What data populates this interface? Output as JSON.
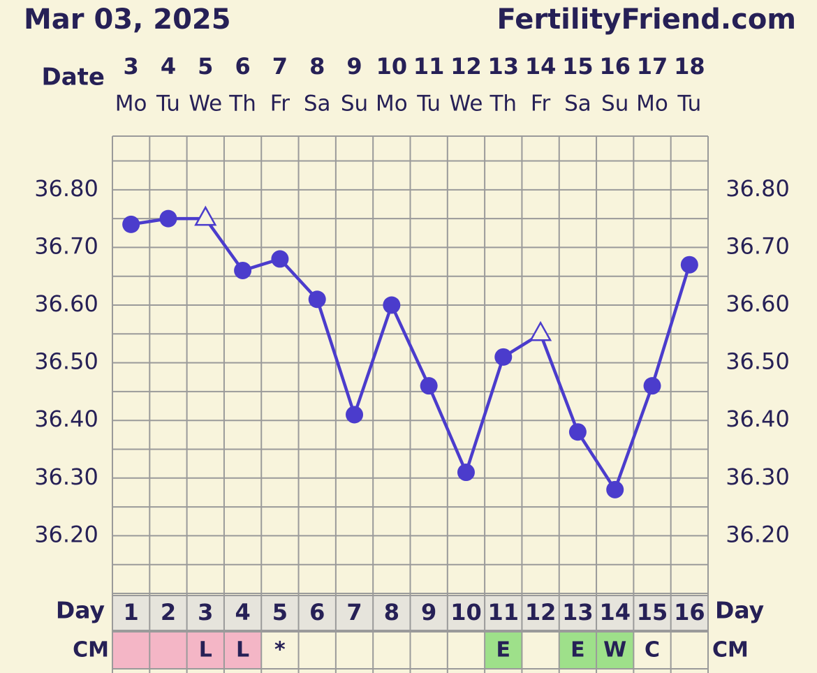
{
  "chart_data": {
    "type": "line",
    "title": "Mar 03, 2025",
    "site": "FertilityFriend.com",
    "date_label": "Date",
    "dates": [
      3,
      4,
      5,
      6,
      7,
      8,
      9,
      10,
      11,
      12,
      13,
      14,
      15,
      16,
      17,
      18
    ],
    "weekdays": [
      "Mo",
      "Tu",
      "We",
      "Th",
      "Fr",
      "Sa",
      "Su",
      "Mo",
      "Tu",
      "We",
      "Th",
      "Fr",
      "Sa",
      "Su",
      "Mo",
      "Tu"
    ],
    "day_label": "Day",
    "cycle_days": [
      1,
      2,
      3,
      4,
      5,
      6,
      7,
      8,
      9,
      10,
      11,
      12,
      13,
      14,
      15,
      16
    ],
    "cm_label": "CM",
    "cm_values": [
      null,
      null,
      "L",
      "L",
      "*",
      null,
      null,
      null,
      null,
      null,
      "E",
      null,
      "E",
      "W",
      "C",
      null
    ],
    "cm_colors": [
      "#f4b6c6",
      "#f4b6c6",
      "#f4b6c6",
      "#f4b6c6",
      null,
      null,
      null,
      null,
      null,
      null,
      "#9ee08a",
      null,
      "#9ee08a",
      "#9ee08a",
      null,
      null
    ],
    "series": [
      {
        "color": "#4b3ccc",
        "values": [
          36.74,
          36.75,
          36.75,
          36.66,
          36.68,
          36.61,
          36.41,
          36.6,
          36.46,
          36.31,
          36.51,
          36.55,
          36.38,
          36.28,
          36.46,
          36.67
        ],
        "markers": [
          "circle",
          "circle",
          "triangle",
          "circle",
          "circle",
          "circle",
          "circle",
          "circle",
          "circle",
          "circle",
          "circle",
          "triangle",
          "circle",
          "circle",
          "circle",
          "circle"
        ]
      }
    ],
    "ylim": [
      36.1,
      36.893
    ],
    "yticks": [
      {
        "value": 36.2,
        "label": "36.20"
      },
      {
        "value": 36.3,
        "label": "36.30"
      },
      {
        "value": 36.4,
        "label": "36.40"
      },
      {
        "value": 36.5,
        "label": "36.50"
      },
      {
        "value": 36.6,
        "label": "36.60"
      },
      {
        "value": 36.7,
        "label": "36.70"
      },
      {
        "value": 36.8,
        "label": "36.80"
      }
    ],
    "grid": true
  }
}
